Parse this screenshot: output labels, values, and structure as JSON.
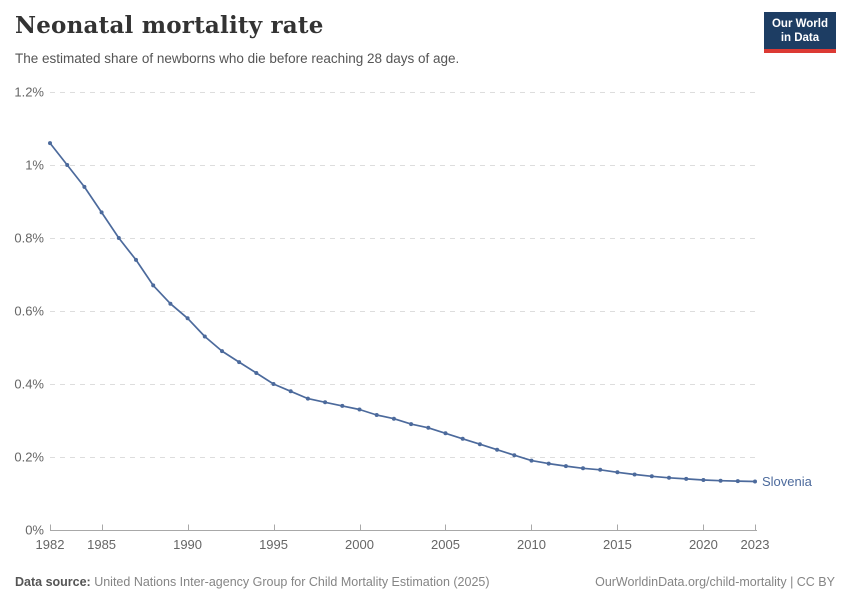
{
  "header": {
    "title": "Neonatal mortality rate",
    "subtitle": "The estimated share of newborns who die before reaching 28 days of age.",
    "logo": {
      "line1": "Our World",
      "line2": "in Data",
      "bg_color": "#1d3d63",
      "accent_color": "#dc3a34"
    }
  },
  "chart_data": {
    "type": "line",
    "title": "Neonatal mortality rate",
    "xlabel": "",
    "ylabel": "",
    "xlim": [
      1982,
      2023
    ],
    "ylim": [
      0,
      1.2
    ],
    "grid": "horizontal-dashed",
    "legend_position": "end-of-line",
    "x_ticks": [
      1982,
      1985,
      1990,
      1995,
      2000,
      2005,
      2010,
      2015,
      2020,
      2023
    ],
    "y_ticks": [
      0,
      0.2,
      0.4,
      0.6,
      0.8,
      1.0,
      1.2
    ],
    "y_tick_labels": [
      "0%",
      "0.2%",
      "0.4%",
      "0.6%",
      "0.8%",
      "1%",
      "1.2%"
    ],
    "unit": "%",
    "series": [
      {
        "name": "Slovenia",
        "color": "#4c6a9c",
        "x": [
          1982,
          1983,
          1984,
          1985,
          1986,
          1987,
          1988,
          1989,
          1990,
          1991,
          1992,
          1993,
          1994,
          1995,
          1996,
          1997,
          1998,
          1999,
          2000,
          2001,
          2002,
          2003,
          2004,
          2005,
          2006,
          2007,
          2008,
          2009,
          2010,
          2011,
          2012,
          2013,
          2014,
          2015,
          2016,
          2017,
          2018,
          2019,
          2020,
          2021,
          2022,
          2023
        ],
        "values": [
          1.06,
          1.0,
          0.94,
          0.87,
          0.8,
          0.74,
          0.67,
          0.62,
          0.58,
          0.53,
          0.49,
          0.46,
          0.43,
          0.4,
          0.38,
          0.36,
          0.35,
          0.34,
          0.33,
          0.315,
          0.305,
          0.29,
          0.28,
          0.265,
          0.25,
          0.235,
          0.22,
          0.205,
          0.19,
          0.182,
          0.175,
          0.169,
          0.165,
          0.158,
          0.152,
          0.147,
          0.143,
          0.14,
          0.137,
          0.135,
          0.134,
          0.133
        ]
      }
    ]
  },
  "footer": {
    "source_label": "Data source:",
    "source_text": " United Nations Inter-agency Group for Child Mortality Estimation (2025)",
    "credit": "OurWorldinData.org/child-mortality | CC BY"
  },
  "colors": {
    "grid": "#dddddd",
    "axis": "#a8a8a8",
    "tick_label": "#666666"
  }
}
